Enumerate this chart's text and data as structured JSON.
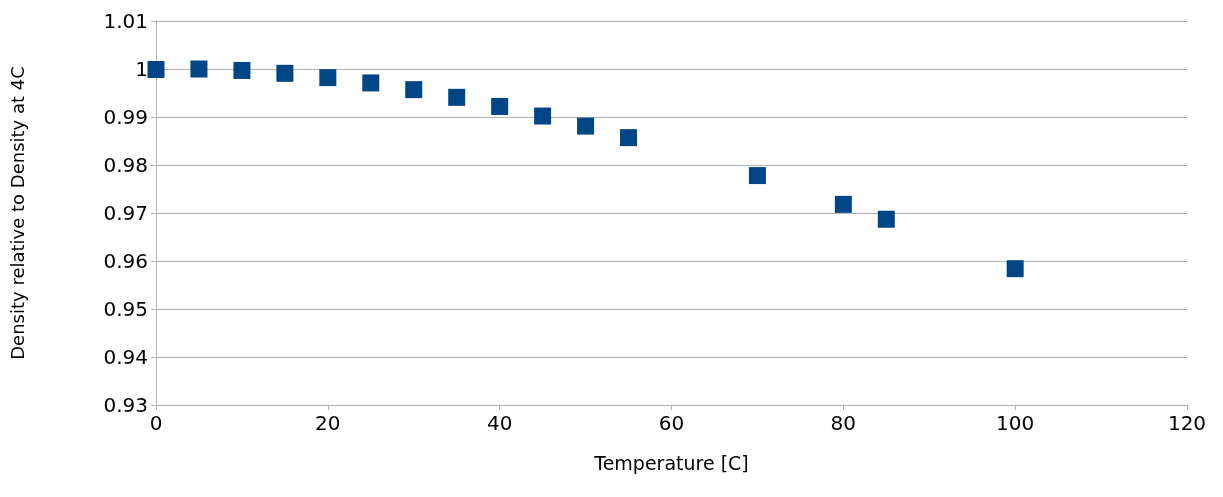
{
  "chart_data": {
    "type": "scatter",
    "xlabel": "Temperature [C]",
    "ylabel": "Density relative to Density at 4C",
    "x": [
      0,
      5,
      10,
      15,
      20,
      25,
      30,
      35,
      40,
      45,
      50,
      55,
      70,
      80,
      85,
      100
    ],
    "series": [
      {
        "color": "#004586",
        "values": [
          0.9999,
          1.0,
          0.9997,
          0.9991,
          0.9982,
          0.9971,
          0.9957,
          0.9941,
          0.9922,
          0.9902,
          0.9881,
          0.9857,
          0.9778,
          0.9718,
          0.9687,
          0.9584
        ]
      }
    ],
    "xlim": [
      0,
      120
    ],
    "xticks": [
      0,
      20,
      40,
      60,
      80,
      100,
      120
    ],
    "ylim": [
      0.93,
      1.01
    ],
    "yticks": [
      0.93,
      0.94,
      0.95,
      0.96,
      0.97,
      0.98,
      0.99,
      1,
      1.01
    ],
    "grid": "y",
    "marker": "square"
  }
}
